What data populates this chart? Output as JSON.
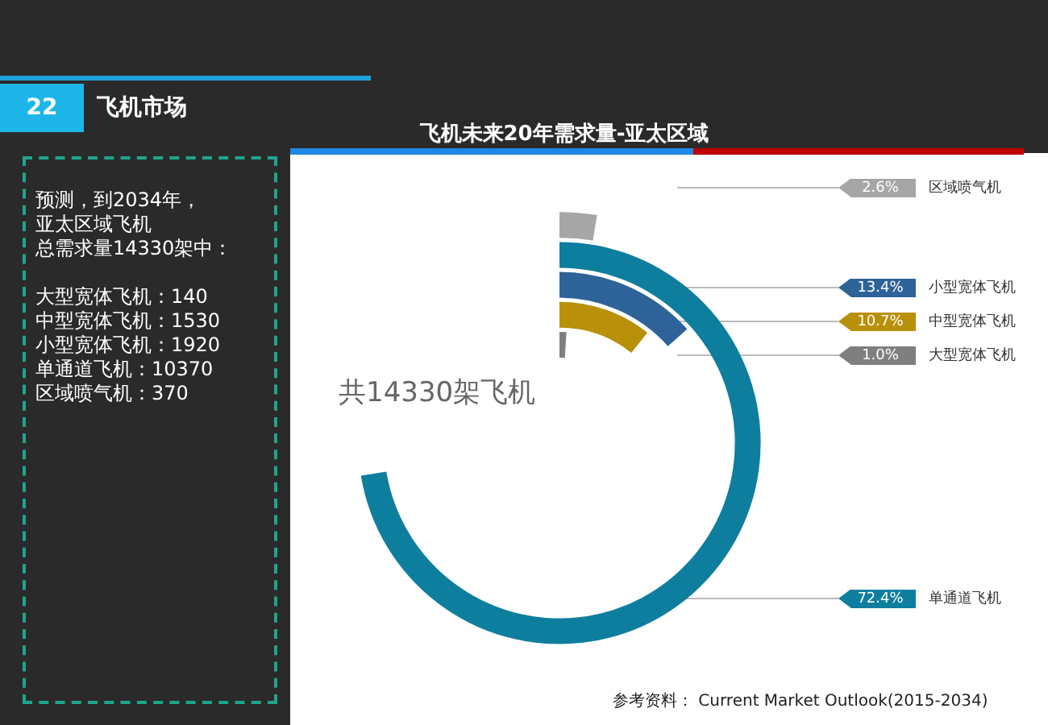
{
  "chart_data": {
    "type": "other",
    "title": "飞机未来20年需求量-亚太区域",
    "categories": [
      "区域喷气机",
      "单通道飞机",
      "小型宽体飞机",
      "中型宽体飞机",
      "大型宽体飞机"
    ],
    "values": [
      2.6,
      72.4,
      13.4,
      10.7,
      1.0
    ],
    "value_labels": [
      "2.6%",
      "72.4%",
      "13.4%",
      "10.7%",
      "1.0%"
    ],
    "colors": [
      "#a6a6a6",
      "#0e7e9e",
      "#2e6399",
      "#b8900a",
      "#7f7f7f"
    ],
    "annotations": [
      "22",
      "飞机市场",
      "预测，到2034年，",
      "亚太区域飞机",
      "总需求量14330架中：",
      "大型宽体飞机：140",
      "中型宽体飞机：1530",
      "小型宽体飞机：1920",
      "单通道飞机：10370",
      "区域喷气机：370",
      "共14330架飞机",
      "参考资料：  Current Market Outlook(2015-2034)"
    ]
  }
}
